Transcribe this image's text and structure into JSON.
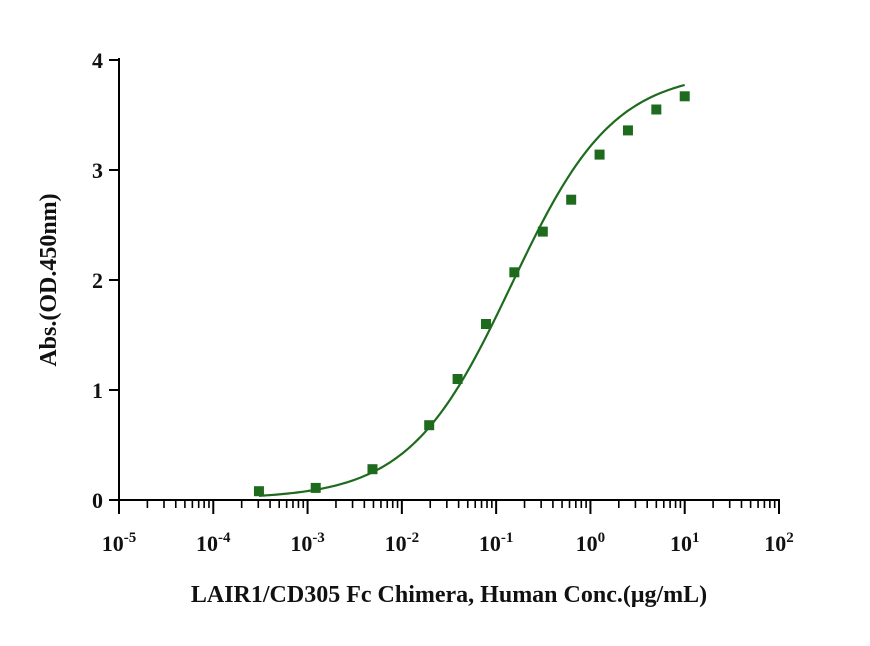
{
  "chart_data": {
    "type": "scatter",
    "xscale": "log",
    "xlabel": "LAIR1/CD305 Fc Chimera, Human Conc.(μg/mL)",
    "ylabel": "Abs.(OD.450nm)",
    "xlim": [
      1e-05,
      100
    ],
    "ylim": [
      0,
      4
    ],
    "x_ticks": [
      {
        "base": "10",
        "exp": "-5"
      },
      {
        "base": "10",
        "exp": "-4"
      },
      {
        "base": "10",
        "exp": "-3"
      },
      {
        "base": "10",
        "exp": "-2"
      },
      {
        "base": "10",
        "exp": "-1"
      },
      {
        "base": "10",
        "exp": "0"
      },
      {
        "base": "10",
        "exp": "1"
      },
      {
        "base": "10",
        "exp": "2"
      }
    ],
    "y_ticks": [
      "0",
      "1",
      "2",
      "3",
      "4"
    ],
    "series": [
      {
        "x": [
          0.000305,
          0.00122,
          0.00488,
          0.0195,
          0.039,
          0.078,
          0.156,
          0.3125,
          0.625,
          1.25,
          2.5,
          5,
          10
        ],
        "y": [
          0.08,
          0.11,
          0.28,
          0.68,
          1.1,
          1.6,
          2.07,
          2.44,
          2.73,
          3.14,
          3.36,
          3.55,
          3.67
        ]
      }
    ],
    "fit": {
      "type": "four-parameter logistic",
      "bottom": 0.01,
      "top": 3.9,
      "ec50": 0.145,
      "hill": 0.8
    },
    "grid": false,
    "legend": "none",
    "colors": {
      "series": "#1e6b1e",
      "axis": "#000000"
    }
  }
}
